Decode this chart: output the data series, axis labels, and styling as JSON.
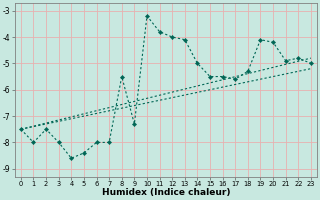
{
  "xlabel": "Humidex (Indice chaleur)",
  "bg_color": "#c8e8e0",
  "grid_color": "#e8b0b0",
  "line_color": "#006655",
  "main_x": [
    0,
    1,
    2,
    3,
    4,
    5,
    6,
    7,
    8,
    9,
    10,
    11,
    12,
    13,
    14,
    15,
    16,
    17,
    18,
    19,
    20,
    21,
    22,
    23
  ],
  "main_y": [
    -7.5,
    -8.0,
    -7.5,
    -8.0,
    -8.6,
    -8.4,
    -8.0,
    -8.0,
    -5.5,
    -7.3,
    -3.2,
    -3.8,
    -4.0,
    -4.1,
    -5.0,
    -5.5,
    -5.5,
    -5.6,
    -5.3,
    -4.1,
    -4.2,
    -4.9,
    -4.8,
    -5.0
  ],
  "trend1_x": [
    0,
    23
  ],
  "trend1_y": [
    -7.5,
    -4.8
  ],
  "trend2_x": [
    0,
    23
  ],
  "trend2_y": [
    -7.5,
    -5.2
  ],
  "xlim": [
    -0.5,
    23.5
  ],
  "ylim": [
    -9.3,
    -2.7
  ],
  "xticks": [
    0,
    1,
    2,
    3,
    4,
    5,
    6,
    7,
    8,
    9,
    10,
    11,
    12,
    13,
    14,
    15,
    16,
    17,
    18,
    19,
    20,
    21,
    22,
    23
  ],
  "yticks": [
    -9,
    -8,
    -7,
    -6,
    -5,
    -4,
    -3
  ]
}
